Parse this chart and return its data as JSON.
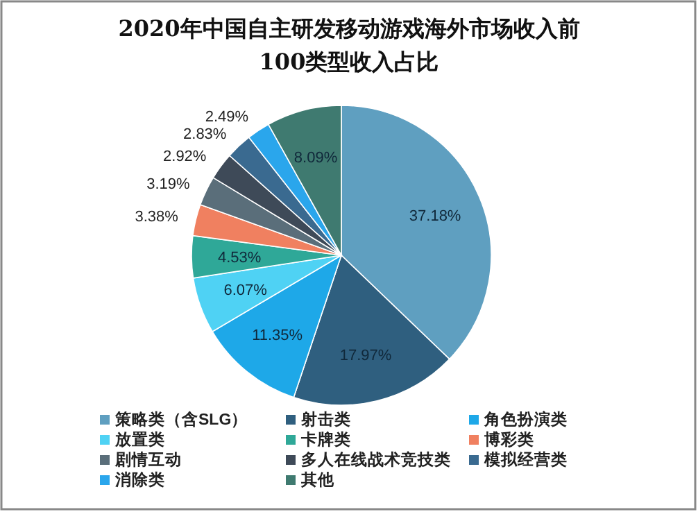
{
  "chart_data": {
    "type": "pie",
    "title": "2020年中国自主研发移动游戏海外市场收入前100类型收入占比",
    "categories": [
      "策略类（含SLG）",
      "射击类",
      "角色扮演类",
      "放置类",
      "卡牌类",
      "博彩类",
      "剧情互动",
      "多人在线战术竞技类",
      "模拟经营类",
      "消除类",
      "其他"
    ],
    "values": [
      37.18,
      17.97,
      11.35,
      6.07,
      4.53,
      3.38,
      3.19,
      2.92,
      2.83,
      2.49,
      8.09
    ],
    "colors": [
      "#5f9fc0",
      "#2f5f7f",
      "#1ea8e8",
      "#4fd2f4",
      "#2fa898",
      "#f08060",
      "#5a6e7a",
      "#3e4a58",
      "#3a6a90",
      "#2aa6ec",
      "#3f7a70"
    ],
    "value_labels": [
      "37.18%",
      "17.97%",
      "11.35%",
      "6.07%",
      "4.53%",
      "3.38%",
      "3.19%",
      "2.92%",
      "2.83%",
      "2.49%",
      "8.09%"
    ],
    "legend": "bottom"
  }
}
